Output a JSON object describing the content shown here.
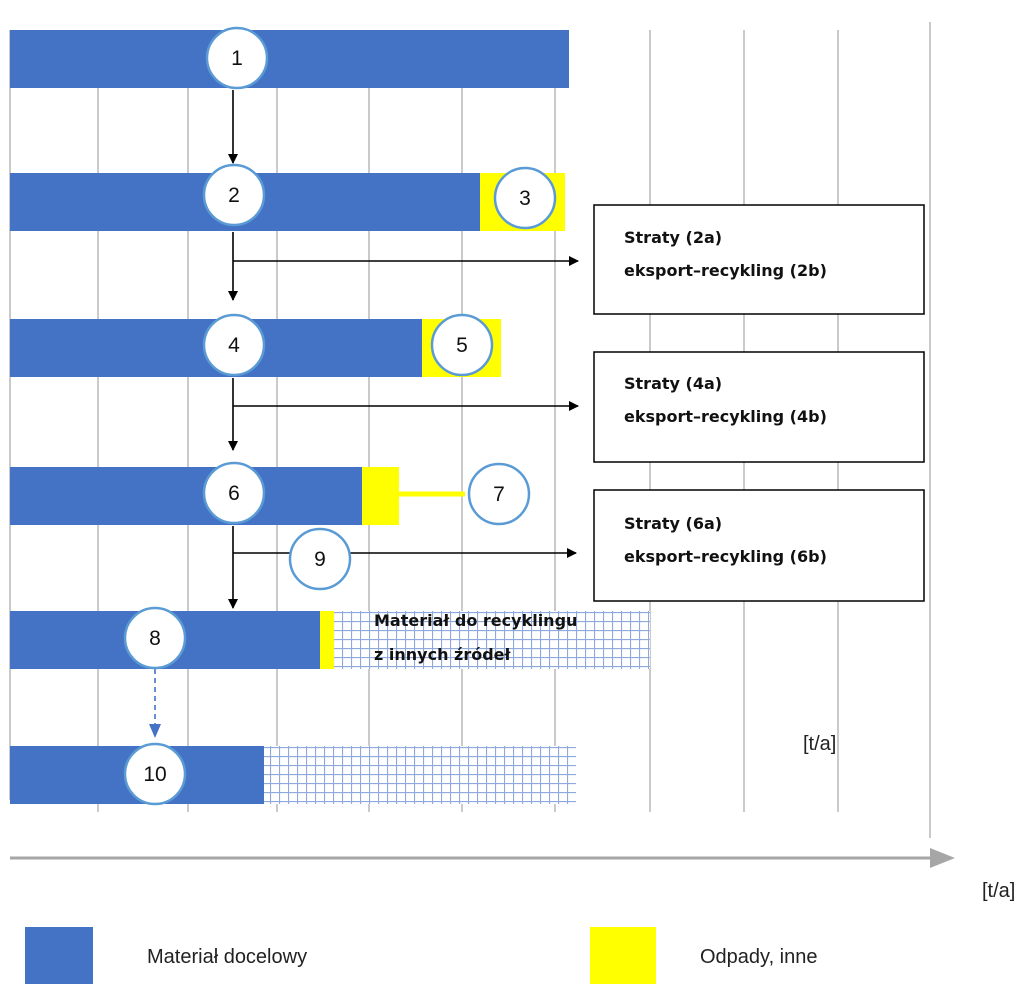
{
  "colors": {
    "target_material": "#4472C4",
    "waste": "#FFFF00",
    "grid": "#A6A6A6",
    "circle_border": "#5B9BD5",
    "hatch": "#8EA9DB",
    "axis": "#A6A6A6"
  },
  "nodes": [
    "1",
    "2",
    "3",
    "4",
    "5",
    "6",
    "7",
    "8",
    "9",
    "10"
  ],
  "boxes": [
    {
      "line1": "Straty (2a)",
      "line2": "eksport–recykling (2b)"
    },
    {
      "line1": "Straty (4a)",
      "line2": "eksport–recykling (4b)"
    },
    {
      "line1": "Straty (6a)",
      "line2": "eksport–recykling (6b)"
    }
  ],
  "hatch_label": {
    "line1": "Materiał do recyklingu",
    "line2": "z innych źródeł"
  },
  "units": {
    "inner": "[t/a]",
    "axis": "[t/a]"
  },
  "legend": [
    {
      "label": "Materiał docelowy",
      "color_key": "target_material"
    },
    {
      "label": "Odpady, inne",
      "color_key": "waste"
    }
  ]
}
